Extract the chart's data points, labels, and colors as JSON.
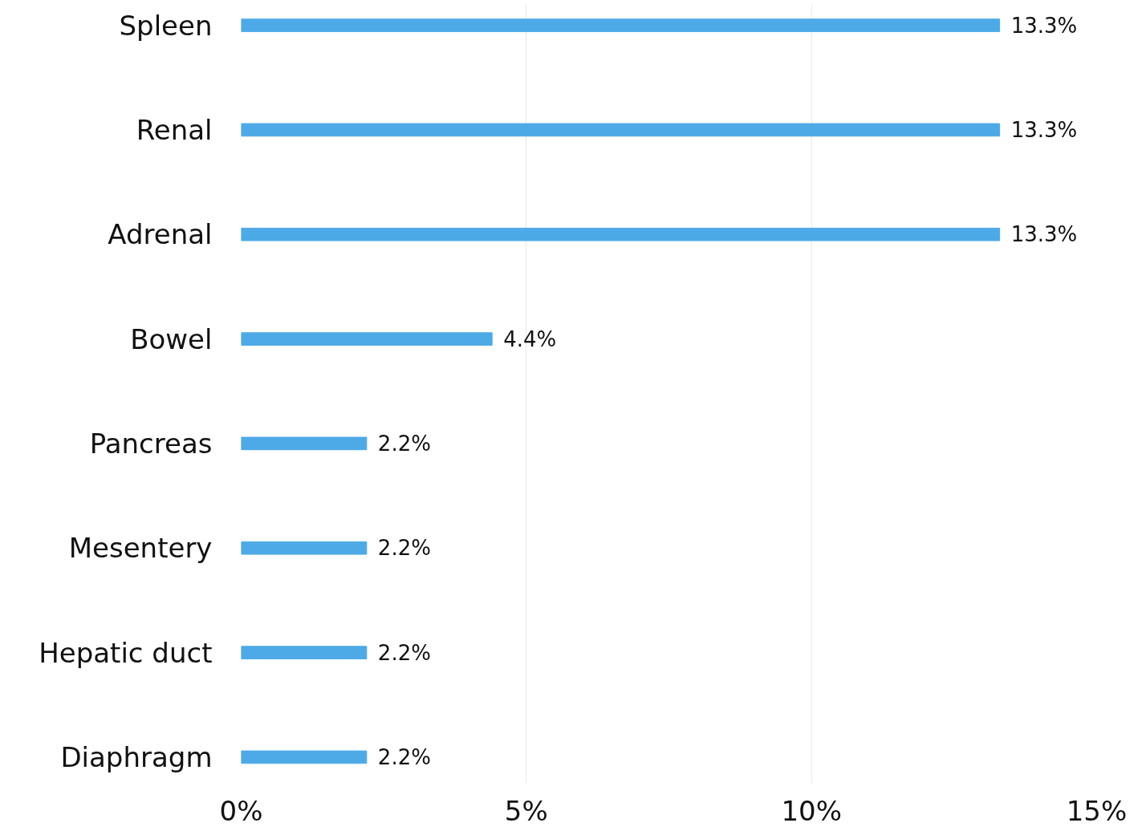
{
  "chart_data": {
    "type": "bar",
    "orientation": "horizontal",
    "categories": [
      "Spleen",
      "Renal",
      "Adrenal",
      "Bowel",
      "Pancreas",
      "Mesentery",
      "Hepatic duct",
      "Diaphragm"
    ],
    "values": [
      13.3,
      13.3,
      13.3,
      4.4,
      2.2,
      2.2,
      2.2,
      2.2
    ],
    "value_labels": [
      "13.3%",
      "13.3%",
      "13.3%",
      "4.4%",
      "2.2%",
      "2.2%",
      "2.2%",
      "2.2%"
    ],
    "color": "#4eaae6",
    "xlim": [
      0,
      15
    ],
    "xticks": [
      {
        "value": 0,
        "label": "0%"
      },
      {
        "value": 5,
        "label": "5%"
      },
      {
        "value": 10,
        "label": "10%"
      },
      {
        "value": 15,
        "label": "15%"
      }
    ],
    "grid": "x"
  }
}
